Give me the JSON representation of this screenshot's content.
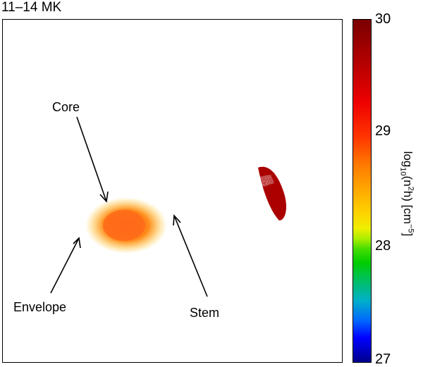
{
  "title": "11–14 MK",
  "colorbar": {
    "ticks": [
      "30",
      "29",
      "28",
      "27"
    ],
    "label_prefix": "log",
    "label_sub": "10",
    "label_mid": "(n",
    "label_sup": "2",
    "label_after": "h) [cm",
    "label_sup2": "−5",
    "label_end": "]",
    "range": [
      27,
      30
    ]
  },
  "annotations": {
    "core": "Core",
    "envelope": "Envelope",
    "stem": "Stem"
  },
  "colors": {
    "low": "#00008b",
    "mid": "#00cc00",
    "high": "#7a0000"
  }
}
